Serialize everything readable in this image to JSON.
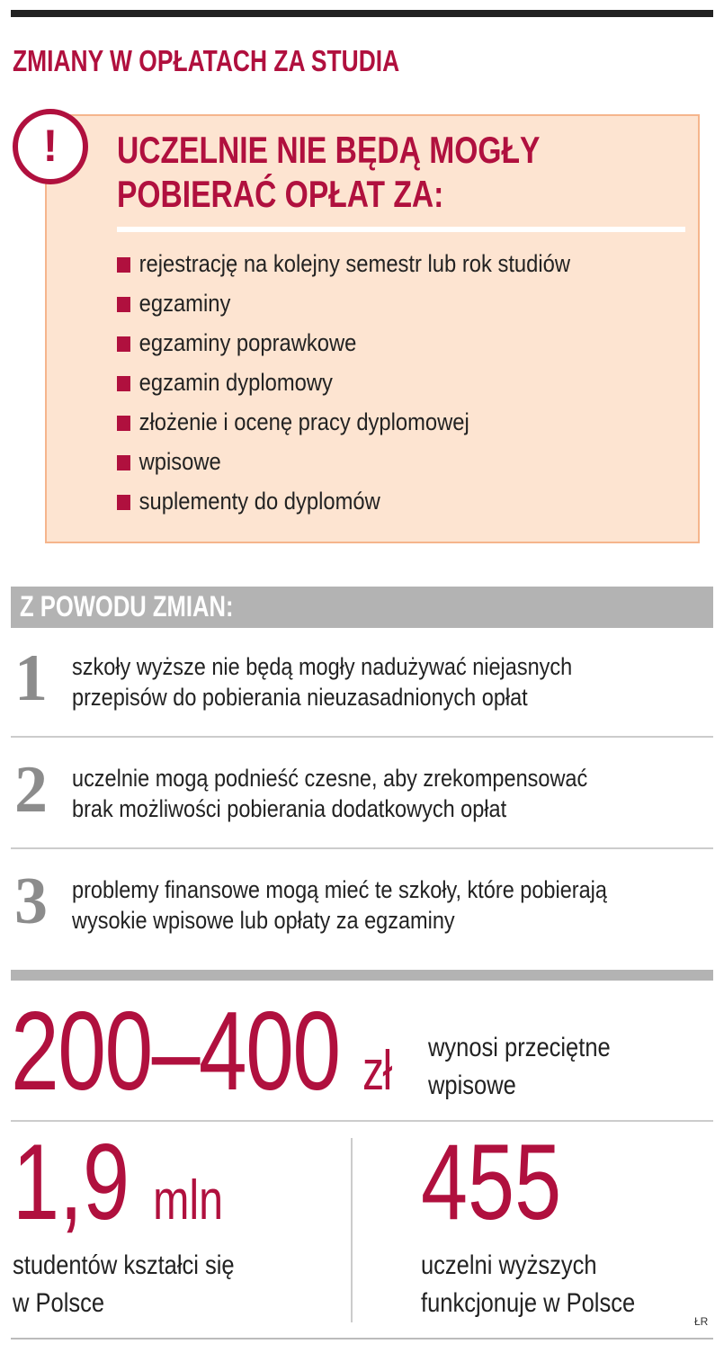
{
  "title": "ZMIANY W OPŁATACH ZA STUDIA",
  "alert_icon": "exclamation-circle-icon",
  "box": {
    "heading_line1": "UCZELNIE NIE BĘDĄ MOGŁY",
    "heading_line2": "POBIERAĆ OPŁAT ZA:",
    "items": [
      "rejestrację na kolejny semestr lub rok studiów",
      "egzaminy",
      "egzaminy poprawkowe",
      "egzamin dyplomowy",
      "złożenie i ocenę pracy dyplomowej",
      "wpisowe",
      "suplementy do dyplomów"
    ]
  },
  "reasons": {
    "label": "Z POWODU ZMIAN:",
    "items": [
      {
        "number": "1",
        "line1": "szkoły wyższe nie będą mogły nadużywać niejasnych",
        "line2": "przepisów do pobierania nieuzasadnionych opłat"
      },
      {
        "number": "2",
        "line1": "uczelnie mogą podnieść czesne, aby zrekompensować",
        "line2": "brak możliwości pobierania dodatkowych opłat"
      },
      {
        "number": "3",
        "line1": "problemy finansowe mogą mieć te szkoły, które pobierają",
        "line2": "wysokie wpisowe lub opłaty za egzaminy"
      }
    ]
  },
  "stats": {
    "fee": {
      "value": "200–400",
      "unit": "zł",
      "line1": "wynosi przeciętne",
      "line2": "wpisowe"
    },
    "students": {
      "value": "1,9",
      "unit": "mln",
      "line1": "studentów kształci się",
      "line2": "w Polsce"
    },
    "universities": {
      "value": "455",
      "line1": "uczelni wyższych",
      "line2": "funkcjonuje w Polsce"
    }
  },
  "credit": "ŁR",
  "colors": {
    "accent": "#b0103e",
    "box_bg": "#fde4d1",
    "box_border": "#f5b58c",
    "gray": "#b3b3b3"
  }
}
